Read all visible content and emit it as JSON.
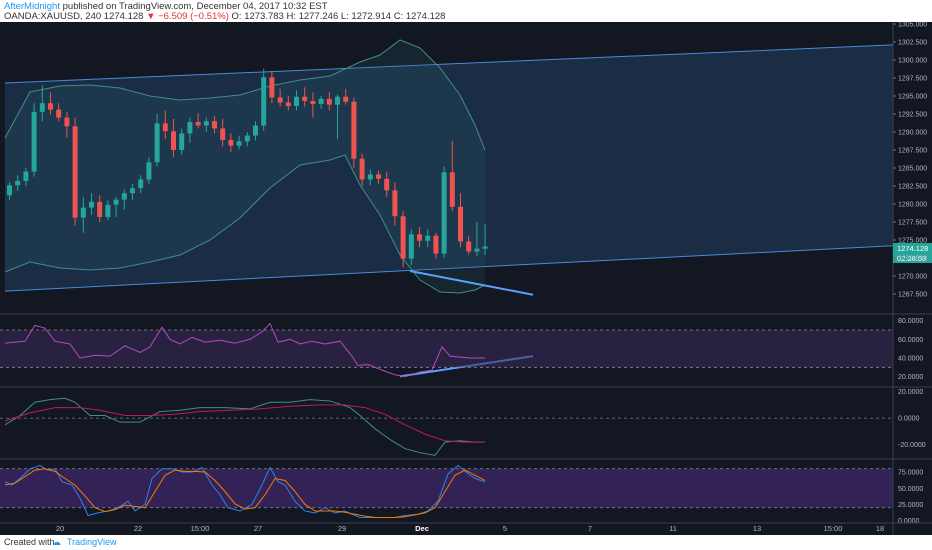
{
  "header": {
    "author": "AfterMidnight",
    "published": "published on TradingView.com, December 04, 2017 10:32 EST",
    "symbol": "OANDA:XAUUSD, 240",
    "last": "1274.128",
    "change": "▼ −6.509 (−0.51%)",
    "ohlc": "O: 1273.783 H: 1277.246 L: 1272.914 C: 1274.128"
  },
  "footer": {
    "created": "Created with",
    "brand": "TradingView"
  },
  "colors": {
    "up": "#26a69a",
    "down": "#ef5350",
    "channel": "#4a8ad8",
    "trendline": "#5aa0ff",
    "bg": "#131722"
  },
  "chart_data": {
    "type": "candlestick",
    "symbol": "OANDA:XAUUSD",
    "timeframe": "240",
    "price_ylim": [
      1265,
      1305
    ],
    "price_ticks": [
      "1305.000",
      "1302.500",
      "1300.000",
      "1297.500",
      "1295.000",
      "1292.500",
      "1290.000",
      "1287.500",
      "1285.000",
      "1282.500",
      "1280.000",
      "1277.500",
      "1275.000",
      "1272.500",
      "1270.000",
      "1267.500"
    ],
    "last_price_label": "1274.128",
    "countdown_label": "02:28:03",
    "x_ticks": [
      "20",
      "22",
      "15:00",
      "27",
      "29",
      "Dec",
      "5",
      "7",
      "11",
      "13",
      "15:00",
      "18"
    ],
    "candles": [
      [
        1281.2,
        1283.0,
        1280.5,
        1282.6
      ],
      [
        1282.6,
        1284.0,
        1281.8,
        1283.2
      ],
      [
        1283.2,
        1285.0,
        1282.5,
        1284.5
      ],
      [
        1284.5,
        1294.0,
        1283.8,
        1292.8
      ],
      [
        1292.8,
        1296.5,
        1291.5,
        1294.0
      ],
      [
        1294.0,
        1295.5,
        1292.4,
        1293.1
      ],
      [
        1293.1,
        1294.0,
        1291.5,
        1292.0
      ],
      [
        1292.0,
        1292.8,
        1289.2,
        1290.8
      ],
      [
        1290.8,
        1292.0,
        1277.0,
        1278.1
      ],
      [
        1278.1,
        1281.0,
        1276.0,
        1279.5
      ],
      [
        1279.5,
        1281.5,
        1278.5,
        1280.3
      ],
      [
        1280.3,
        1281.2,
        1277.5,
        1278.2
      ],
      [
        1278.2,
        1280.5,
        1277.8,
        1279.9
      ],
      [
        1279.9,
        1281.0,
        1278.2,
        1280.6
      ],
      [
        1280.6,
        1282.0,
        1279.2,
        1281.5
      ],
      [
        1281.5,
        1282.8,
        1280.5,
        1282.2
      ],
      [
        1282.2,
        1284.0,
        1281.5,
        1283.4
      ],
      [
        1283.4,
        1286.5,
        1282.8,
        1285.8
      ],
      [
        1285.8,
        1292.5,
        1285.2,
        1291.2
      ],
      [
        1291.2,
        1293.0,
        1289.0,
        1290.1
      ],
      [
        1290.1,
        1291.8,
        1286.5,
        1287.5
      ],
      [
        1287.5,
        1290.5,
        1286.8,
        1289.8
      ],
      [
        1289.8,
        1292.0,
        1288.5,
        1291.4
      ],
      [
        1291.4,
        1292.6,
        1290.5,
        1290.9
      ],
      [
        1290.9,
        1292.0,
        1290.0,
        1291.5
      ],
      [
        1291.5,
        1292.2,
        1289.8,
        1290.5
      ],
      [
        1290.5,
        1291.8,
        1288.0,
        1288.9
      ],
      [
        1288.9,
        1289.8,
        1287.2,
        1288.1
      ],
      [
        1288.1,
        1289.5,
        1287.6,
        1288.7
      ],
      [
        1288.7,
        1290.0,
        1288.0,
        1289.5
      ],
      [
        1289.5,
        1291.5,
        1288.8,
        1290.9
      ],
      [
        1290.9,
        1298.8,
        1290.2,
        1297.6
      ],
      [
        1297.6,
        1298.5,
        1294.0,
        1294.8
      ],
      [
        1294.8,
        1296.0,
        1293.5,
        1294.1
      ],
      [
        1294.1,
        1295.0,
        1293.0,
        1293.6
      ],
      [
        1293.6,
        1295.8,
        1293.0,
        1294.9
      ],
      [
        1294.9,
        1296.2,
        1293.5,
        1294.3
      ],
      [
        1294.3,
        1295.5,
        1292.0,
        1293.9
      ],
      [
        1293.9,
        1295.0,
        1293.2,
        1294.6
      ],
      [
        1294.6,
        1295.5,
        1293.0,
        1293.8
      ],
      [
        1293.8,
        1295.2,
        1289.0,
        1294.9
      ],
      [
        1294.9,
        1296.0,
        1293.8,
        1294.2
      ],
      [
        1294.2,
        1294.8,
        1285.0,
        1286.3
      ],
      [
        1286.3,
        1287.0,
        1282.5,
        1283.4
      ],
      [
        1283.4,
        1284.8,
        1282.6,
        1284.1
      ],
      [
        1284.1,
        1284.6,
        1282.8,
        1283.5
      ],
      [
        1283.5,
        1284.5,
        1281.0,
        1281.9
      ],
      [
        1281.9,
        1283.0,
        1277.0,
        1278.3
      ],
      [
        1278.3,
        1279.0,
        1271.2,
        1272.4
      ],
      [
        1272.4,
        1276.5,
        1271.5,
        1275.8
      ],
      [
        1275.8,
        1276.8,
        1274.0,
        1274.9
      ],
      [
        1274.9,
        1276.5,
        1274.0,
        1275.6
      ],
      [
        1275.6,
        1276.0,
        1272.4,
        1273.1
      ],
      [
        1273.1,
        1285.2,
        1272.5,
        1284.4
      ],
      [
        1284.4,
        1288.8,
        1279.0,
        1279.6
      ],
      [
        1279.6,
        1281.5,
        1274.0,
        1274.8
      ],
      [
        1274.8,
        1275.6,
        1273.0,
        1273.4
      ],
      [
        1273.4,
        1277.5,
        1272.8,
        1273.8
      ],
      [
        1273.8,
        1277.2,
        1272.9,
        1274.1
      ]
    ],
    "bollinger_upper_points": [
      [
        5,
        138
      ],
      [
        30,
        92
      ],
      [
        60,
        86
      ],
      [
        90,
        85
      ],
      [
        120,
        88
      ],
      [
        150,
        96
      ],
      [
        180,
        100
      ],
      [
        210,
        98
      ],
      [
        240,
        95
      ],
      [
        270,
        86
      ],
      [
        300,
        80
      ],
      [
        330,
        76
      ],
      [
        360,
        62
      ],
      [
        380,
        55
      ],
      [
        400,
        40
      ],
      [
        420,
        48
      ],
      [
        440,
        68
      ],
      [
        460,
        95
      ],
      [
        475,
        125
      ],
      [
        485,
        150
      ]
    ],
    "bollinger_lower_points": [
      [
        5,
        272
      ],
      [
        30,
        262
      ],
      [
        60,
        268
      ],
      [
        90,
        270
      ],
      [
        120,
        268
      ],
      [
        150,
        262
      ],
      [
        180,
        255
      ],
      [
        210,
        240
      ],
      [
        240,
        218
      ],
      [
        270,
        188
      ],
      [
        300,
        165
      ],
      [
        330,
        160
      ],
      [
        345,
        155
      ],
      [
        360,
        185
      ],
      [
        380,
        215
      ],
      [
        400,
        255
      ],
      [
        420,
        280
      ],
      [
        440,
        292
      ],
      [
        460,
        293
      ],
      [
        475,
        290
      ],
      [
        485,
        285
      ]
    ],
    "channel": {
      "upper_line": [
        [
          5,
          1296.8
        ],
        [
          893,
          1302.1
        ]
      ],
      "lower_line": [
        [
          5,
          1267.9
        ],
        [
          893,
          1274.2
        ]
      ]
    },
    "drawn_trendlines": [
      {
        "panel": "price",
        "from": [
          410,
          1270.7
        ],
        "to": [
          533,
          1267.4
        ]
      },
      {
        "panel": "rsi",
        "from": [
          400,
          20.3
        ],
        "to": [
          533,
          42.0
        ]
      }
    ],
    "rsi": {
      "ylim": [
        10,
        85
      ],
      "ticks": [
        "80.0000",
        "60.0000",
        "40.0000",
        "20.0000"
      ],
      "bands": [
        30,
        70
      ],
      "points": [
        [
          5,
          56
        ],
        [
          15,
          57
        ],
        [
          25,
          58
        ],
        [
          35,
          75
        ],
        [
          45,
          72
        ],
        [
          55,
          58
        ],
        [
          70,
          55
        ],
        [
          80,
          40
        ],
        [
          95,
          43
        ],
        [
          110,
          42
        ],
        [
          125,
          53
        ],
        [
          140,
          46
        ],
        [
          150,
          52
        ],
        [
          162,
          73
        ],
        [
          170,
          60
        ],
        [
          180,
          55
        ],
        [
          192,
          62
        ],
        [
          205,
          57
        ],
        [
          220,
          59
        ],
        [
          235,
          56
        ],
        [
          250,
          60
        ],
        [
          262,
          68
        ],
        [
          270,
          77
        ],
        [
          278,
          57
        ],
        [
          290,
          60
        ],
        [
          300,
          55
        ],
        [
          312,
          58
        ],
        [
          325,
          55
        ],
        [
          340,
          58
        ],
        [
          352,
          42
        ],
        [
          358,
          32
        ],
        [
          368,
          33
        ],
        [
          382,
          27
        ],
        [
          395,
          22
        ],
        [
          405,
          20
        ],
        [
          420,
          25
        ],
        [
          432,
          27
        ],
        [
          442,
          52
        ],
        [
          450,
          42
        ],
        [
          460,
          41
        ],
        [
          470,
          40
        ],
        [
          485,
          40
        ]
      ]
    },
    "macd": {
      "ylim": [
        -30,
        22
      ],
      "ticks": [
        "20.0000",
        "0.0000",
        "-20.0000"
      ],
      "macd_points": [
        [
          5,
          -5
        ],
        [
          20,
          2
        ],
        [
          35,
          12
        ],
        [
          50,
          14
        ],
        [
          65,
          15
        ],
        [
          75,
          12
        ],
        [
          90,
          2
        ],
        [
          105,
          2
        ],
        [
          120,
          -3
        ],
        [
          140,
          -3
        ],
        [
          160,
          5
        ],
        [
          180,
          6
        ],
        [
          200,
          8
        ],
        [
          225,
          8
        ],
        [
          250,
          7
        ],
        [
          270,
          12
        ],
        [
          290,
          12
        ],
        [
          310,
          14
        ],
        [
          330,
          13
        ],
        [
          350,
          8
        ],
        [
          360,
          2
        ],
        [
          375,
          -8
        ],
        [
          390,
          -16
        ],
        [
          405,
          -23
        ],
        [
          420,
          -26
        ],
        [
          435,
          -28
        ],
        [
          445,
          -18
        ],
        [
          460,
          -17
        ],
        [
          475,
          -18
        ],
        [
          485,
          -18
        ]
      ],
      "signal_points": [
        [
          5,
          -2
        ],
        [
          30,
          4
        ],
        [
          55,
          8
        ],
        [
          80,
          8
        ],
        [
          100,
          6
        ],
        [
          125,
          2
        ],
        [
          150,
          2
        ],
        [
          175,
          3
        ],
        [
          200,
          5
        ],
        [
          230,
          6
        ],
        [
          260,
          7
        ],
        [
          290,
          9
        ],
        [
          320,
          10
        ],
        [
          345,
          10
        ],
        [
          365,
          8
        ],
        [
          385,
          3
        ],
        [
          405,
          -5
        ],
        [
          425,
          -12
        ],
        [
          445,
          -17
        ],
        [
          465,
          -18
        ],
        [
          485,
          -18
        ]
      ]
    },
    "stochastic": {
      "ylim": [
        -2,
        92
      ],
      "ticks": [
        "75.0000",
        "50.0000",
        "25.0000",
        "0.0000"
      ],
      "bands": [
        20,
        80
      ],
      "k_points": [
        [
          5,
          60
        ],
        [
          12,
          55
        ],
        [
          20,
          65
        ],
        [
          30,
          80
        ],
        [
          40,
          85
        ],
        [
          48,
          78
        ],
        [
          55,
          80
        ],
        [
          62,
          60
        ],
        [
          72,
          55
        ],
        [
          80,
          35
        ],
        [
          88,
          8
        ],
        [
          98,
          12
        ],
        [
          108,
          15
        ],
        [
          118,
          20
        ],
        [
          128,
          30
        ],
        [
          135,
          15
        ],
        [
          145,
          25
        ],
        [
          152,
          65
        ],
        [
          162,
          80
        ],
        [
          172,
          80
        ],
        [
          182,
          75
        ],
        [
          192,
          75
        ],
        [
          202,
          82
        ],
        [
          212,
          55
        ],
        [
          220,
          40
        ],
        [
          228,
          20
        ],
        [
          240,
          15
        ],
        [
          252,
          25
        ],
        [
          262,
          55
        ],
        [
          270,
          82
        ],
        [
          278,
          60
        ],
        [
          285,
          55
        ],
        [
          295,
          30
        ],
        [
          305,
          15
        ],
        [
          315,
          12
        ],
        [
          325,
          20
        ],
        [
          335,
          12
        ],
        [
          345,
          15
        ],
        [
          352,
          10
        ],
        [
          360,
          5
        ],
        [
          372,
          5
        ],
        [
          382,
          5
        ],
        [
          395,
          5
        ],
        [
          405,
          8
        ],
        [
          418,
          10
        ],
        [
          428,
          15
        ],
        [
          438,
          30
        ],
        [
          448,
          72
        ],
        [
          458,
          85
        ],
        [
          466,
          75
        ],
        [
          475,
          65
        ],
        [
          485,
          60
        ]
      ],
      "d_points": [
        [
          5,
          55
        ],
        [
          15,
          58
        ],
        [
          25,
          68
        ],
        [
          35,
          78
        ],
        [
          45,
          80
        ],
        [
          55,
          76
        ],
        [
          65,
          65
        ],
        [
          75,
          55
        ],
        [
          85,
          38
        ],
        [
          95,
          20
        ],
        [
          105,
          14
        ],
        [
          115,
          17
        ],
        [
          125,
          24
        ],
        [
          135,
          22
        ],
        [
          145,
          20
        ],
        [
          155,
          45
        ],
        [
          165,
          70
        ],
        [
          175,
          78
        ],
        [
          185,
          76
        ],
        [
          195,
          76
        ],
        [
          205,
          75
        ],
        [
          215,
          62
        ],
        [
          225,
          45
        ],
        [
          235,
          26
        ],
        [
          245,
          18
        ],
        [
          255,
          20
        ],
        [
          265,
          40
        ],
        [
          275,
          65
        ],
        [
          285,
          62
        ],
        [
          295,
          45
        ],
        [
          305,
          25
        ],
        [
          315,
          15
        ],
        [
          325,
          15
        ],
        [
          335,
          15
        ],
        [
          345,
          13
        ],
        [
          355,
          10
        ],
        [
          365,
          7
        ],
        [
          375,
          5
        ],
        [
          385,
          5
        ],
        [
          395,
          5
        ],
        [
          405,
          6
        ],
        [
          415,
          9
        ],
        [
          425,
          12
        ],
        [
          435,
          20
        ],
        [
          445,
          45
        ],
        [
          455,
          70
        ],
        [
          465,
          78
        ],
        [
          475,
          70
        ],
        [
          485,
          62
        ]
      ]
    }
  }
}
